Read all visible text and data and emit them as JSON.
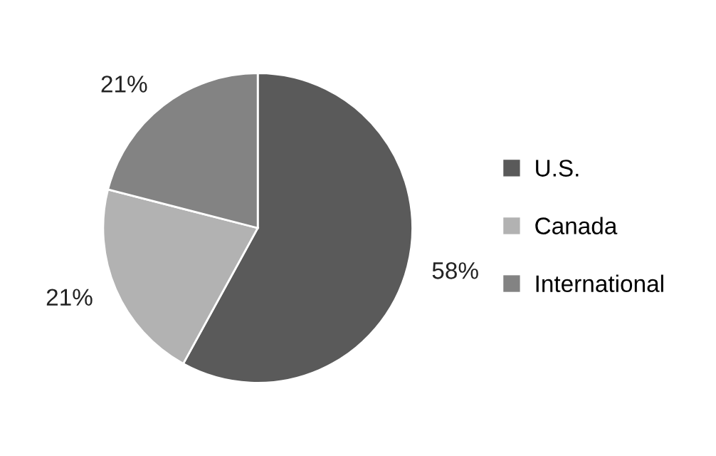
{
  "chart_data": {
    "type": "pie",
    "categories": [
      "U.S.",
      "Canada",
      "International"
    ],
    "values": [
      58,
      21,
      21
    ],
    "colors": [
      "#5a5a5a",
      "#b2b2b2",
      "#838383"
    ],
    "value_labels": [
      "58%",
      "21%",
      "21%"
    ],
    "legend": "right"
  }
}
